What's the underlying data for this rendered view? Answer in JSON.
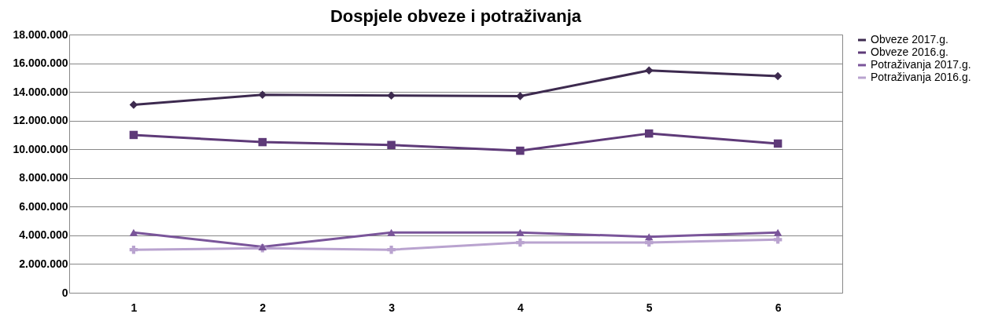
{
  "chart_data": {
    "type": "line",
    "title": "Dospjele obveze i potraživanja",
    "categories": [
      "1",
      "2",
      "3",
      "4",
      "5",
      "6"
    ],
    "series": [
      {
        "name": "Obveze 2017.g.",
        "color": "#3d2a4f",
        "marker": "diamond",
        "values": [
          13100000,
          13800000,
          13750000,
          13700000,
          15500000,
          15100000
        ]
      },
      {
        "name": "Obveze 2016.g.",
        "color": "#5e3a78",
        "marker": "square",
        "values": [
          11000000,
          10500000,
          10300000,
          9900000,
          11100000,
          10400000
        ]
      },
      {
        "name": "Potraživanja 2017.g.",
        "color": "#7a559a",
        "marker": "triangle",
        "values": [
          4200000,
          3200000,
          4200000,
          4200000,
          3900000,
          4200000
        ]
      },
      {
        "name": "Potraživanja 2016.g.",
        "color": "#b9a3cf",
        "marker": "cross",
        "values": [
          3000000,
          3100000,
          3000000,
          3500000,
          3500000,
          3700000
        ]
      }
    ],
    "ylim": [
      0,
      18000000
    ],
    "yticks": [
      {
        "value": 0,
        "label": "0"
      },
      {
        "value": 2000000,
        "label": "2.000.000"
      },
      {
        "value": 4000000,
        "label": "4.000.000"
      },
      {
        "value": 6000000,
        "label": "6.000.000"
      },
      {
        "value": 8000000,
        "label": "8.000.000"
      },
      {
        "value": 10000000,
        "label": "10.000.000"
      },
      {
        "value": 12000000,
        "label": "12.000.000"
      },
      {
        "value": 14000000,
        "label": "14.000.000"
      },
      {
        "value": 16000000,
        "label": "16.000.000"
      },
      {
        "value": 18000000,
        "label": "18.000.000"
      }
    ],
    "grid": "y",
    "legend": "right",
    "line_style": "solid"
  }
}
